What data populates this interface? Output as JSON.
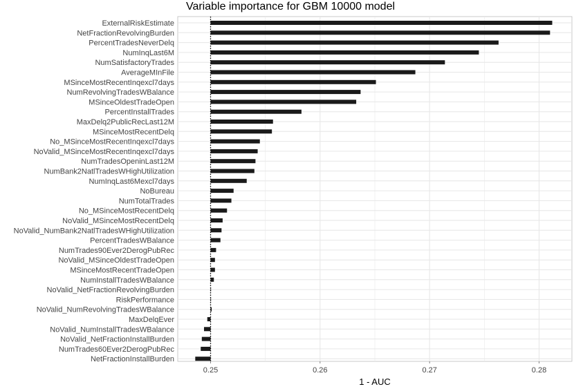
{
  "chart_data": {
    "type": "bar",
    "orientation": "horizontal",
    "title": "Variable importance for GBM 10000 model",
    "xlabel": "1 - AUC",
    "ylabel": "",
    "xlim": [
      0.247,
      0.283
    ],
    "xticks": [
      0.25,
      0.26,
      0.27,
      0.28
    ],
    "xtick_labels": [
      "0.25",
      "0.26",
      "0.27",
      "0.28"
    ],
    "baseline": 0.25,
    "baseline_style": "dotted",
    "grid": true,
    "bar_color": "#1a1a1a",
    "panel_border_color": "#bdbdbd",
    "grid_color": "#e6e6e6",
    "categories": [
      "ExternalRiskEstimate",
      "NetFractionRevolvingBurden",
      "PercentTradesNeverDelq",
      "NumInqLast6M",
      "NumSatisfactoryTrades",
      "AverageMInFile",
      "MSinceMostRecentInqexcl7days",
      "NumRevolvingTradesWBalance",
      "MSinceOldestTradeOpen",
      "PercentInstallTrades",
      "MaxDelq2PublicRecLast12M",
      "MSinceMostRecentDelq",
      "No_MSinceMostRecentInqexcl7days",
      "NoValid_MSinceMostRecentInqexcl7days",
      "NumTradesOpeninLast12M",
      "NumBank2NatlTradesWHighUtilization",
      "NumInqLast6Mexcl7days",
      "NoBureau",
      "NumTotalTrades",
      "No_MSinceMostRecentDelq",
      "NoValid_MSinceMostRecentDelq",
      "NoValid_NumBank2NatlTradesWHighUtilization",
      "PercentTradesWBalance",
      "NumTrades90Ever2DerogPubRec",
      "NoValid_MSinceOldestTradeOpen",
      "MSinceMostRecentTradeOpen",
      "NumInstallTradesWBalance",
      "NoValid_NetFractionRevolvingBurden",
      "RiskPerformance",
      "NoValid_NumRevolvingTradesWBalance",
      "MaxDelqEver",
      "NoValid_NumInstallTradesWBalance",
      "NoValid_NetFractionInstallBurden",
      "NumTrades60Ever2DerogPubRec",
      "NetFractionInstallBurden"
    ],
    "values": [
      0.2812,
      0.281,
      0.2763,
      0.2745,
      0.2714,
      0.2687,
      0.2651,
      0.2637,
      0.2633,
      0.2583,
      0.2557,
      0.2556,
      0.2545,
      0.2543,
      0.2541,
      0.254,
      0.2533,
      0.2521,
      0.2519,
      0.2515,
      0.2511,
      0.251,
      0.2509,
      0.2505,
      0.2504,
      0.2504,
      0.2503,
      0.25,
      0.25,
      0.2501,
      0.2497,
      0.2494,
      0.2492,
      0.2491,
      0.2486
    ]
  }
}
